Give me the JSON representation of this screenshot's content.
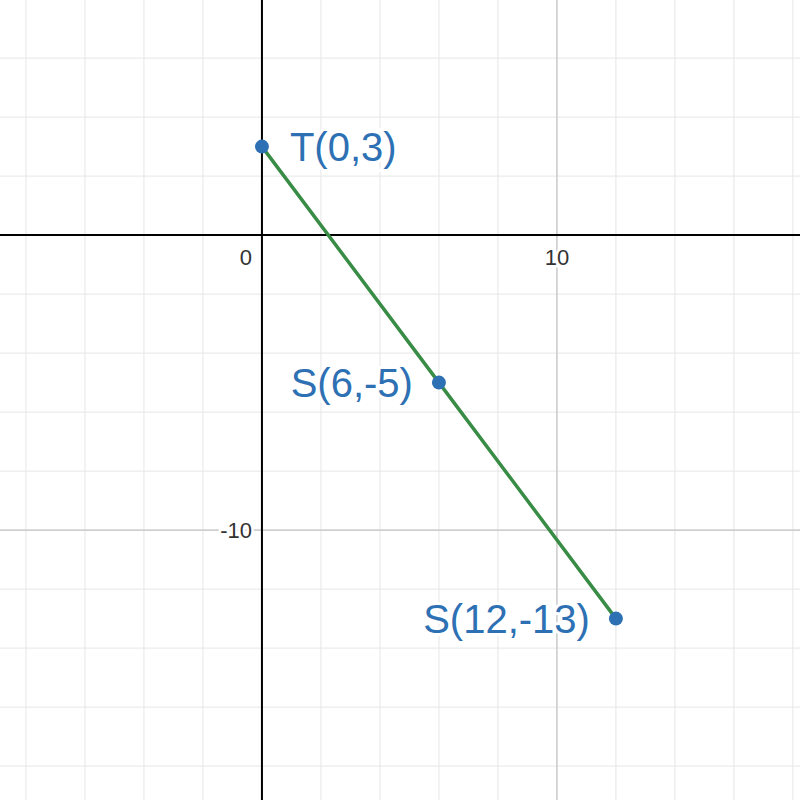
{
  "chart_data": {
    "type": "line",
    "xlim": [
      -8.88,
      18.24
    ],
    "ylim": [
      -19.15,
      7.97
    ],
    "xticks": [
      0,
      10
    ],
    "yticks": [
      -10,
      0
    ],
    "grid": true,
    "series": [
      {
        "type": "line",
        "color": "#388c46",
        "x": [
          0,
          6,
          12
        ],
        "values": [
          3,
          -5,
          -13
        ]
      },
      {
        "type": "scatter",
        "color": "#2d70b3",
        "marker": "circle",
        "x": [
          0,
          6,
          12
        ],
        "values": [
          3,
          -5,
          -13
        ],
        "labels": [
          "T(0,3)",
          "S(6,-5)",
          "S(12,-13)"
        ]
      }
    ]
  }
}
